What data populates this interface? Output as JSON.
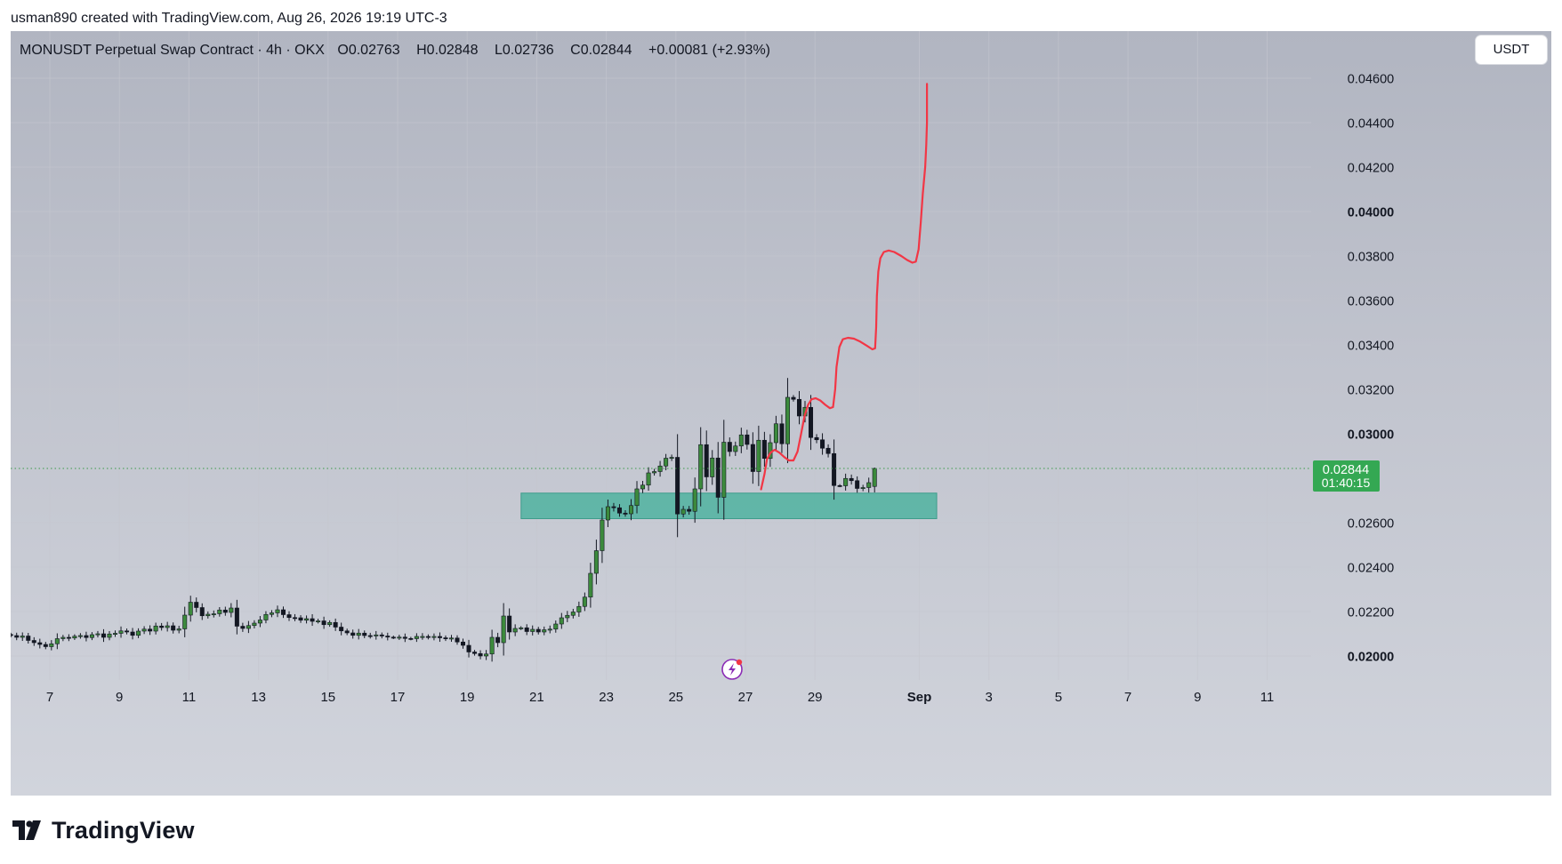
{
  "credit": "usman890 created with TradingView.com, Aug 26, 2026 19:19 UTC-3",
  "legend": {
    "symbol": "MONUSDT Perpetual Swap Contract · 4h · OKX",
    "open": "O0.02763",
    "high": "H0.02848",
    "low": "L0.02736",
    "close": "C0.02844",
    "change": "+0.00081 (+2.93%)"
  },
  "currency_button": "USDT",
  "brand": "TradingView",
  "colors": {
    "up_body": "#3c8a3c",
    "down_body": "#131722",
    "wick": "#131722",
    "projection": "#f23645",
    "zone": "#4fb3a0",
    "price_tag": "#34a853",
    "bg_top": "#b1b5c1",
    "bg_bottom": "#d1d4dc"
  },
  "chart_data": {
    "type": "candlestick",
    "symbol": "MONUSDT",
    "timeframe": "4h",
    "exchange": "OKX",
    "y_ticks": [
      {
        "label": "0.04600",
        "value": 0.046,
        "bold": false
      },
      {
        "label": "0.04400",
        "value": 0.044,
        "bold": false
      },
      {
        "label": "0.04200",
        "value": 0.042,
        "bold": false
      },
      {
        "label": "0.04000",
        "value": 0.04,
        "bold": true
      },
      {
        "label": "0.03800",
        "value": 0.038,
        "bold": false
      },
      {
        "label": "0.03600",
        "value": 0.036,
        "bold": false
      },
      {
        "label": "0.03400",
        "value": 0.034,
        "bold": false
      },
      {
        "label": "0.03200",
        "value": 0.032,
        "bold": false
      },
      {
        "label": "0.03000",
        "value": 0.03,
        "bold": true
      },
      {
        "label": "0.02600",
        "value": 0.026,
        "bold": false
      },
      {
        "label": "0.02400",
        "value": 0.024,
        "bold": false
      },
      {
        "label": "0.02200",
        "value": 0.022,
        "bold": false
      },
      {
        "label": "0.02000",
        "value": 0.02,
        "bold": true
      }
    ],
    "x_ticks": [
      {
        "label": "7",
        "day": 7,
        "bold": false
      },
      {
        "label": "9",
        "day": 9,
        "bold": false
      },
      {
        "label": "11",
        "day": 11,
        "bold": false
      },
      {
        "label": "13",
        "day": 13,
        "bold": false
      },
      {
        "label": "15",
        "day": 15,
        "bold": false
      },
      {
        "label": "17",
        "day": 17,
        "bold": false
      },
      {
        "label": "19",
        "day": 19,
        "bold": false
      },
      {
        "label": "21",
        "day": 21,
        "bold": false
      },
      {
        "label": "23",
        "day": 23,
        "bold": false
      },
      {
        "label": "25",
        "day": 25,
        "bold": false
      },
      {
        "label": "27",
        "day": 27,
        "bold": false
      },
      {
        "label": "29",
        "day": 29,
        "bold": false
      },
      {
        "label": "Sep",
        "day": 32,
        "bold": true
      },
      {
        "label": "3",
        "day": 34,
        "bold": false
      },
      {
        "label": "5",
        "day": 36,
        "bold": false
      },
      {
        "label": "7",
        "day": 38,
        "bold": false
      },
      {
        "label": "9",
        "day": 40,
        "bold": false
      },
      {
        "label": "11",
        "day": 42,
        "bold": false
      }
    ],
    "current_price": {
      "label": "0.02844",
      "value": 0.02844,
      "countdown": "01:40:15"
    },
    "support_zone": {
      "from_day": 20.55,
      "to_day": 32.5,
      "low": 0.02618,
      "high": 0.02733
    },
    "candles_start_day": 5.88,
    "candle_interval_days": 0.16667,
    "closes": [
      0.02092,
      0.02084,
      0.0209,
      0.0207,
      0.0206,
      0.02052,
      0.02042,
      0.02055,
      0.02078,
      0.02084,
      0.02081,
      0.02089,
      0.02092,
      0.02083,
      0.02096,
      0.021,
      0.02084,
      0.02099,
      0.02102,
      0.02113,
      0.02108,
      0.02093,
      0.02112,
      0.02121,
      0.02112,
      0.02135,
      0.02128,
      0.02136,
      0.02116,
      0.02122,
      0.02184,
      0.02242,
      0.02218,
      0.02181,
      0.02188,
      0.0219,
      0.02207,
      0.02196,
      0.02216,
      0.02134,
      0.02124,
      0.02137,
      0.02148,
      0.02162,
      0.02187,
      0.02194,
      0.02208,
      0.02186,
      0.02173,
      0.02172,
      0.02161,
      0.02168,
      0.02156,
      0.02158,
      0.02141,
      0.02151,
      0.0213,
      0.02113,
      0.02104,
      0.02093,
      0.02103,
      0.02092,
      0.02091,
      0.02095,
      0.0209,
      0.02085,
      0.02083,
      0.02085,
      0.02079,
      0.02078,
      0.02088,
      0.02088,
      0.02084,
      0.02088,
      0.02082,
      0.02078,
      0.02081,
      0.02063,
      0.02048,
      0.02018,
      0.02011,
      0.02,
      0.02009,
      0.02084,
      0.0206,
      0.0218,
      0.02108,
      0.02124,
      0.02127,
      0.0211,
      0.0212,
      0.02108,
      0.02118,
      0.02121,
      0.02144,
      0.02172,
      0.02183,
      0.02198,
      0.02223,
      0.02265,
      0.02372,
      0.02474,
      0.02612,
      0.02672,
      0.02667,
      0.02643,
      0.0264,
      0.02677,
      0.02752,
      0.02769,
      0.02824,
      0.0283,
      0.02855,
      0.0289,
      0.02894,
      0.02639,
      0.0266,
      0.02651,
      0.02752,
      0.02951,
      0.02806,
      0.02891,
      0.02714,
      0.02962,
      0.0292,
      0.02945,
      0.02995,
      0.02952,
      0.0283,
      0.02971,
      0.02889,
      0.0296,
      0.03045,
      0.02955,
      0.03164,
      0.03155,
      0.0308,
      0.03119,
      0.02983,
      0.02973,
      0.02935,
      0.02911,
      0.02767,
      0.02766,
      0.02799,
      0.02789,
      0.02754,
      0.02758,
      0.0278,
      0.028
    ],
    "last_candle": {
      "open": 0.02763,
      "high": 0.02848,
      "low": 0.02736,
      "close": 0.02844
    },
    "projection_path": [
      [
        27.45,
        0.0275
      ],
      [
        27.55,
        0.0282
      ],
      [
        27.62,
        0.02885
      ],
      [
        27.72,
        0.02915
      ],
      [
        27.84,
        0.02928
      ],
      [
        27.98,
        0.02915
      ],
      [
        28.12,
        0.02895
      ],
      [
        28.25,
        0.0288
      ],
      [
        28.38,
        0.0288
      ],
      [
        28.5,
        0.0292
      ],
      [
        28.6,
        0.03
      ],
      [
        28.7,
        0.0308
      ],
      [
        28.8,
        0.0313
      ],
      [
        28.9,
        0.03155
      ],
      [
        29.02,
        0.0316
      ],
      [
        29.15,
        0.0315
      ],
      [
        29.3,
        0.0313
      ],
      [
        29.43,
        0.03115
      ],
      [
        29.52,
        0.0312
      ],
      [
        29.58,
        0.032
      ],
      [
        29.62,
        0.033
      ],
      [
        29.7,
        0.0339
      ],
      [
        29.8,
        0.03425
      ],
      [
        29.95,
        0.03432
      ],
      [
        30.12,
        0.03428
      ],
      [
        30.3,
        0.03415
      ],
      [
        30.5,
        0.03395
      ],
      [
        30.65,
        0.0338
      ],
      [
        30.73,
        0.03385
      ],
      [
        30.76,
        0.0348
      ],
      [
        30.78,
        0.0362
      ],
      [
        30.82,
        0.0373
      ],
      [
        30.88,
        0.0379
      ],
      [
        30.98,
        0.03818
      ],
      [
        31.12,
        0.03825
      ],
      [
        31.28,
        0.03818
      ],
      [
        31.48,
        0.038
      ],
      [
        31.65,
        0.03782
      ],
      [
        31.8,
        0.0377
      ],
      [
        31.9,
        0.03775
      ],
      [
        31.98,
        0.0383
      ],
      [
        32.04,
        0.0395
      ],
      [
        32.1,
        0.0408
      ],
      [
        32.17,
        0.042
      ],
      [
        32.2,
        0.043
      ],
      [
        32.22,
        0.044
      ],
      [
        32.22,
        0.045
      ],
      [
        32.22,
        0.04575
      ]
    ]
  }
}
